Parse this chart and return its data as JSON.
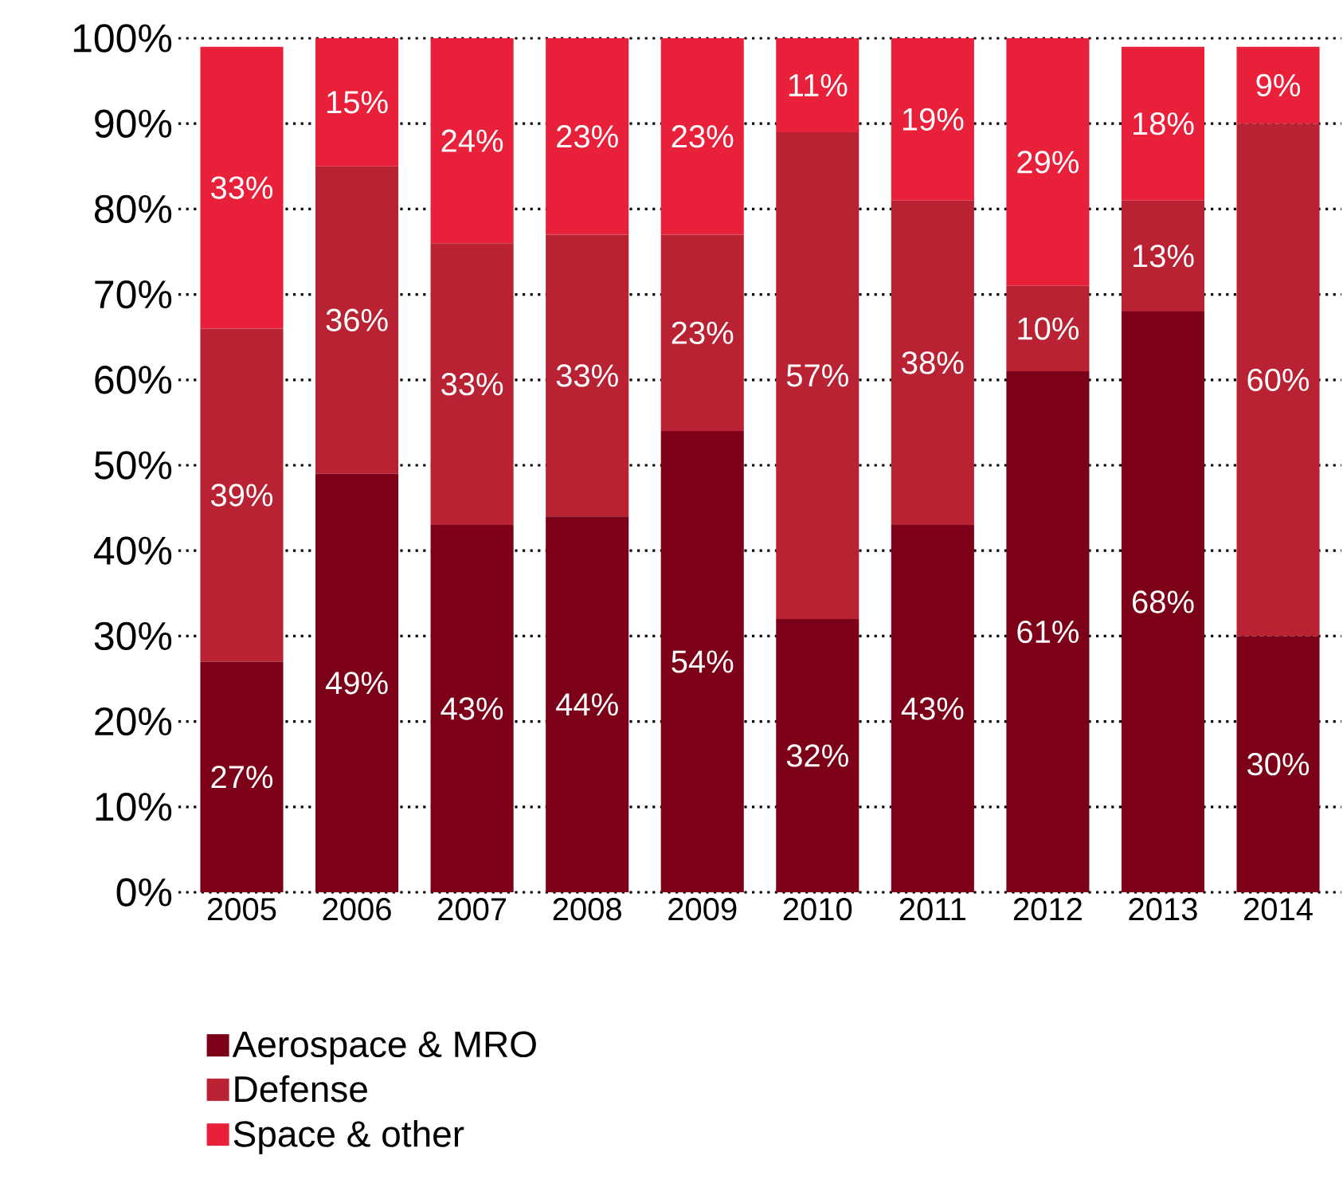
{
  "chart_data": {
    "type": "bar",
    "stacked": true,
    "grid": "y",
    "legend": "bottom",
    "categories": [
      "2005",
      "2006",
      "2007",
      "2008",
      "2009",
      "2010",
      "2011",
      "2012",
      "2013",
      "2014"
    ],
    "ylim": [
      0,
      100
    ],
    "yticks": [
      {
        "value": 0,
        "label": "0%"
      },
      {
        "value": 10,
        "label": "10%"
      },
      {
        "value": 20,
        "label": "20%"
      },
      {
        "value": 30,
        "label": "30%"
      },
      {
        "value": 40,
        "label": "40%"
      },
      {
        "value": 50,
        "label": "50%"
      },
      {
        "value": 60,
        "label": "60%"
      },
      {
        "value": 70,
        "label": "70%"
      },
      {
        "value": 80,
        "label": "80%"
      },
      {
        "value": 90,
        "label": "90%"
      },
      {
        "value": 100,
        "label": "100%"
      }
    ],
    "series": [
      {
        "name": "Aerospace & MRO",
        "color": "#7d0019",
        "values": [
          27,
          49,
          43,
          44,
          54,
          32,
          43,
          61,
          68,
          30
        ],
        "value_labels": [
          "27%",
          "49%",
          "43%",
          "44%",
          "54%",
          "32%",
          "43%",
          "61%",
          "68%",
          "30%"
        ]
      },
      {
        "name": "Defense",
        "color": "#b82233",
        "values": [
          39,
          36,
          33,
          33,
          23,
          57,
          38,
          10,
          13,
          60
        ],
        "value_labels": [
          "39%",
          "36%",
          "33%",
          "33%",
          "23%",
          "57%",
          "38%",
          "10%",
          "13%",
          "60%"
        ]
      },
      {
        "name": "Space & other",
        "color": "#e8203a",
        "values": [
          33,
          15,
          24,
          23,
          23,
          11,
          19,
          29,
          18,
          9
        ],
        "value_labels": [
          "33%",
          "15%",
          "24%",
          "23%",
          "23%",
          "11%",
          "19%",
          "29%",
          "18%",
          "9%"
        ]
      }
    ]
  }
}
